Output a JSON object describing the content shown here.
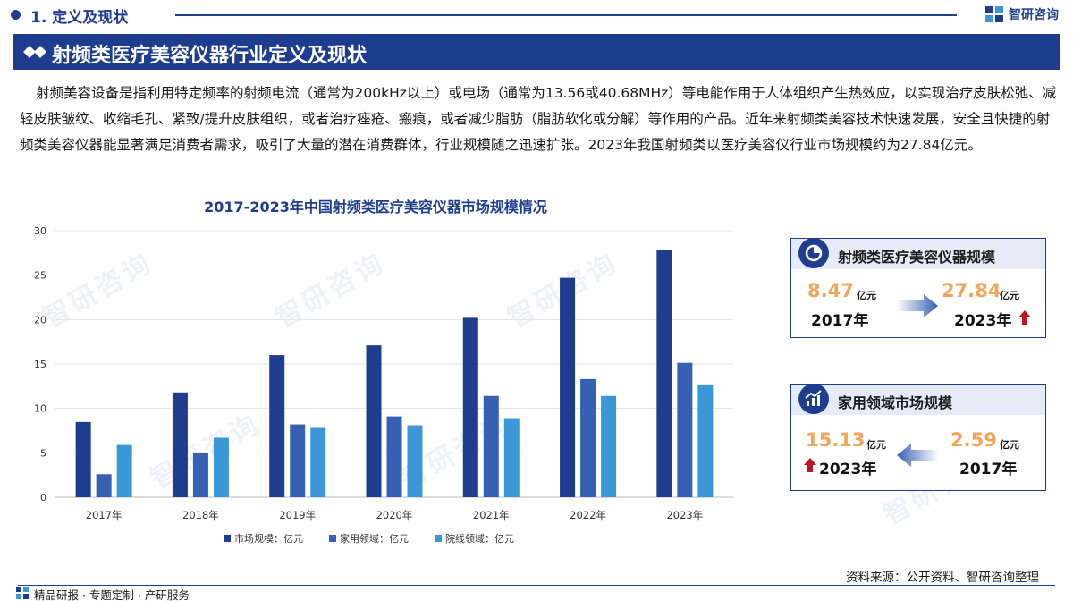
{
  "header": {
    "section": "1. 定义及现状",
    "logo_text": "智研咨询",
    "watermark": "智研咨询"
  },
  "banner": {
    "title": "射频类医疗美容仪器行业定义及现状"
  },
  "intro": "射频美容设备是指利用特定频率的射频电流（通常为200kHz以上）或电场（通常为13.56或40.68MHz）等电能作用于人体组织产生热效应，以实现治疗皮肤松弛、减轻皮肤皱纹、收缩毛孔、紧致/提升皮肤组织，或者治疗痤疮、瘢痕，或者减少脂肪（脂肪软化或分解）等作用的产品。近年来射频类美容技术快速发展，安全且快捷的射频类美容仪器能显著满足消费者需求，吸引了大量的潜在消费群体，行业规模随之迅速扩张。2023年我国射频类以医疗美容仪行业市场规模约为27.84亿元。",
  "chart_data": {
    "type": "bar",
    "title": "2017-2023年中国射频类医疗美容仪器市场规模情况",
    "categories": [
      "2017年",
      "2018年",
      "2019年",
      "2020年",
      "2021年",
      "2022年",
      "2023年"
    ],
    "series": [
      {
        "name": "市场规模：亿元",
        "color": "#1f3d8f",
        "values": [
          8.47,
          11.8,
          16.0,
          17.1,
          20.2,
          24.7,
          27.84
        ]
      },
      {
        "name": "家用领域：亿元",
        "color": "#3660b3",
        "values": [
          2.59,
          5.0,
          8.2,
          9.1,
          11.4,
          13.3,
          15.13
        ]
      },
      {
        "name": "院线领域：亿元",
        "color": "#3a98d6",
        "values": [
          5.88,
          6.7,
          7.8,
          8.1,
          8.9,
          11.4,
          12.7
        ]
      }
    ],
    "ylim": [
      0,
      30
    ],
    "yticks": [
      0,
      5,
      10,
      15,
      20,
      25,
      30
    ],
    "grid": true,
    "legend": "bottom"
  },
  "card1": {
    "title": "射频类医疗美容仪器规模",
    "left_value": "8.47",
    "left_unit": "亿元",
    "left_year": "2017年",
    "right_value": "27.84",
    "right_unit": "亿元",
    "right_year": "2023年",
    "icon": "pie-chart-icon"
  },
  "card2": {
    "title": "家用领域市场规模",
    "left_value": "15.13",
    "left_unit": "亿元",
    "left_year": "2023年",
    "right_value": "2.59",
    "right_unit": "亿元",
    "right_year": "2017年",
    "icon": "bar-trend-icon"
  },
  "colors": {
    "brand": "#1f3d8f",
    "highlight_number": "#f5a55a",
    "up_arrow": "#c0161b"
  },
  "footer": {
    "source": "资料来源：公开资料、智研咨询整理",
    "services": "精品研报 · 专题定制 · 产研服务"
  }
}
